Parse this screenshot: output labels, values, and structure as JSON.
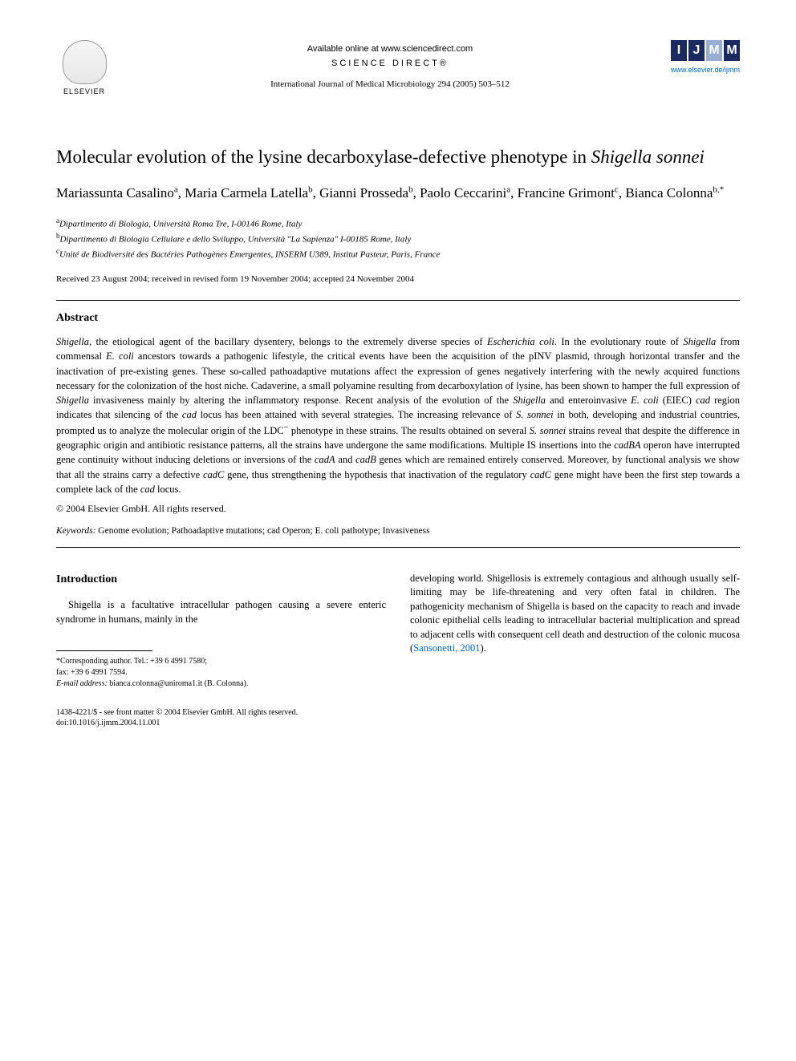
{
  "header": {
    "elsevier_label": "ELSEVIER",
    "available_online": "Available online at www.sciencedirect.com",
    "science_direct": "SCIENCE DIRECT®",
    "journal_reference": "International Journal of Medical Microbiology 294 (2005) 503–512",
    "ijmm_letters": [
      "I",
      "J",
      "M",
      "M"
    ],
    "ijmm_colors": [
      "#1a2a5e",
      "#1a2a5e",
      "#9aaed4",
      "#1a2a5e"
    ],
    "ijmm_link": "www.elsevier.de/ijmm"
  },
  "title": {
    "line1": "Molecular evolution of the lysine decarboxylase-defective phenotype in",
    "line2_italic": "Shigella sonnei"
  },
  "authors": [
    {
      "name": "Mariassunta Casalino",
      "sup": "a"
    },
    {
      "name": "Maria Carmela Latella",
      "sup": "b"
    },
    {
      "name": "Gianni Prosseda",
      "sup": "b"
    },
    {
      "name": "Paolo Ceccarini",
      "sup": "a"
    },
    {
      "name": "Francine Grimont",
      "sup": "c"
    },
    {
      "name": "Bianca Colonna",
      "sup": "b,*"
    }
  ],
  "affiliations": [
    {
      "sup": "a",
      "text": "Dipartimento di Biologia, Università Roma Tre, I-00146 Rome, Italy"
    },
    {
      "sup": "b",
      "text": "Dipartimento di Biologia Cellulare e dello Sviluppo, Università \"La Sapienza\" I-00185 Rome, Italy"
    },
    {
      "sup": "c",
      "text": "Unité de Biodiversité des Bactéries Pathogènes Emergentes, INSERM U389, Institut Pasteur, Paris, France"
    }
  ],
  "dates": "Received 23 August 2004; received in revised form 19 November 2004; accepted 24 November 2004",
  "abstract": {
    "heading": "Abstract",
    "body_html": "<span class='ital'>Shigella</span>, the etiological agent of the bacillary dysentery, belongs to the extremely diverse species of <span class='ital'>Escherichia coli</span>. In the evolutionary route of <span class='ital'>Shigella</span> from commensal <span class='ital'>E. coli</span> ancestors towards a pathogenic lifestyle, the critical events have been the acquisition of the pINV plasmid, through horizontal transfer and the inactivation of pre-existing genes. These so-called pathoadaptive mutations affect the expression of genes negatively interfering with the newly acquired functions necessary for the colonization of the host niche. Cadaverine, a small polyamine resulting from decarboxylation of lysine, has been shown to hamper the full expression of <span class='ital'>Shigella</span> invasiveness mainly by altering the inflammatory response. Recent analysis of the evolution of the <span class='ital'>Shigella</span> and enteroinvasive <span class='ital'>E. coli</span> (EIEC) <span class='ital'>cad</span> region indicates that silencing of the <span class='ital'>cad</span> locus has been attained with several strategies. The increasing relevance of <span class='ital'>S. sonnei</span> in both, developing and industrial countries, prompted us to analyze the molecular origin of the LDC<sup>−</sup> phenotype in these strains. The results obtained on several <span class='ital'>S. sonnei</span> strains reveal that despite the difference in geographic origin and antibiotic resistance patterns, all the strains have undergone the same modifications. Multiple IS insertions into the <span class='ital'>cadBA</span> operon have interrupted gene continuity without inducing deletions or inversions of the <span class='ital'>cadA</span> and <span class='ital'>cadB</span> genes which are remained entirely conserved. Moreover, by functional analysis we show that all the strains carry a defective <span class='ital'>cadC</span> gene, thus strengthening the hypothesis that inactivation of the regulatory <span class='ital'>cadC</span> gene might have been the first step towards a complete lack of the <span class='ital'>cad</span> locus.",
    "copyright": "© 2004 Elsevier GmbH. All rights reserved."
  },
  "keywords": {
    "label": "Keywords:",
    "text": "Genome evolution; Pathoadaptive mutations; cad Operon; E. coli pathotype; Invasiveness"
  },
  "introduction": {
    "heading": "Introduction",
    "left_para_html": "<span class='ital'>Shigella</span> is a facultative intracellular pathogen causing a severe enteric syndrome in humans, mainly in the",
    "right_para_html": "developing world. Shigellosis is extremely contagious and although usually self-limiting may be life-threatening and very often fatal in children. The pathogenicity mechanism of <span class='ital'>Shigella</span> is based on the capacity to reach and invade colonic epithelial cells leading to intracellular bacterial multiplication and spread to adjacent cells with consequent cell death and destruction of the colonic mucosa (<span class='link'>Sansonetti, 2001</span>)."
  },
  "footnotes": {
    "corresponding": "*Corresponding author. Tel.: +39 6 4991 7580;",
    "fax": "fax: +39 6 4991 7594.",
    "email_label": "E-mail address:",
    "email": "bianca.colonna@uniroma1.it (B. Colonna)."
  },
  "footer": {
    "line1": "1438-4221/$ - see front matter © 2004 Elsevier GmbH. All rights reserved.",
    "line2": "doi:10.1016/j.ijmm.2004.11.001"
  }
}
